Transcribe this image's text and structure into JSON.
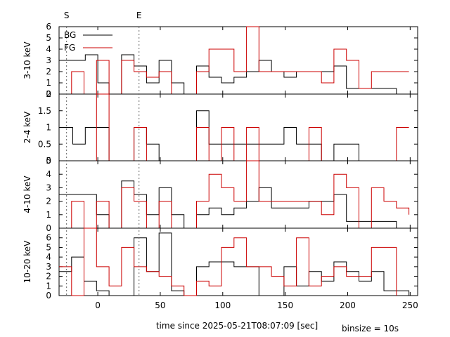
{
  "chart_data": {
    "type": "line",
    "xlabel": "time since 2025-05-21T08:07:09 [sec]",
    "binsize_label": "binsize = 10s",
    "xlim": [
      -31,
      256
    ],
    "xticks": [
      "0",
      "50",
      "100",
      "150",
      "200",
      "250"
    ],
    "markers": [
      {
        "label": "S",
        "x": -25
      },
      {
        "label": "E",
        "x": 33
      }
    ],
    "colors": {
      "BG": "#000000",
      "FG": "#cc0000"
    },
    "legend": {
      "placement": "top-left",
      "entries": [
        "BG",
        "FG"
      ]
    },
    "panels": [
      {
        "ylabel": "3-10 keV",
        "ylim": [
          0,
          6
        ],
        "yticks": [
          "0",
          "1",
          "2",
          "3",
          "4",
          "5",
          "6"
        ],
        "series": [
          {
            "name": "BG",
            "steps": [
              [
                -31,
                3
              ],
              [
                -10,
                3.5
              ],
              [
                0,
                1
              ],
              [
                9,
                0
              ],
              [
                19,
                3.5
              ],
              [
                29,
                2.5
              ],
              [
                39,
                1
              ],
              [
                49,
                3
              ],
              [
                59,
                1
              ],
              [
                69,
                0
              ],
              [
                79,
                2.5
              ],
              [
                89,
                1.5
              ],
              [
                99,
                1
              ],
              [
                109,
                1.5
              ],
              [
                119,
                2
              ],
              [
                129,
                3
              ],
              [
                139,
                2
              ],
              [
                149,
                1.5
              ],
              [
                159,
                2
              ],
              [
                179,
                2
              ],
              [
                189,
                2.5
              ],
              [
                199,
                0.5
              ],
              [
                239,
                0
              ]
            ]
          },
          {
            "name": "FG",
            "steps": [
              [
                -31,
                0
              ],
              [
                -21,
                2
              ],
              [
                -11,
                0
              ],
              [
                -1,
                3
              ],
              [
                9,
                0
              ],
              [
                19,
                3
              ],
              [
                29,
                2
              ],
              [
                39,
                1.5
              ],
              [
                49,
                2
              ],
              [
                59,
                0
              ],
              [
                79,
                2
              ],
              [
                89,
                4
              ],
              [
                109,
                2
              ],
              [
                119,
                6
              ],
              [
                129,
                2
              ],
              [
                179,
                1
              ],
              [
                189,
                4
              ],
              [
                199,
                3
              ],
              [
                209,
                0.5
              ],
              [
                219,
                2
              ],
              [
                249,
                2
              ]
            ]
          }
        ]
      },
      {
        "ylabel": "2-4 keV",
        "ylim": [
          0,
          2
        ],
        "yticks": [
          "0",
          "0.5",
          "1",
          "1.5",
          "2"
        ],
        "series": [
          {
            "name": "BG",
            "steps": [
              [
                -31,
                1
              ],
              [
                -20,
                0.5
              ],
              [
                -10,
                1
              ],
              [
                9,
                0
              ],
              [
                29,
                1
              ],
              [
                39,
                0.5
              ],
              [
                49,
                0
              ],
              [
                79,
                1.5
              ],
              [
                89,
                0.5
              ],
              [
                149,
                1
              ],
              [
                159,
                0.5
              ],
              [
                179,
                0
              ],
              [
                189,
                0.5
              ],
              [
                209,
                0
              ]
            ]
          },
          {
            "name": "FG",
            "steps": [
              [
                -31,
                0
              ],
              [
                -1,
                2
              ],
              [
                9,
                0
              ],
              [
                29,
                1
              ],
              [
                39,
                0
              ],
              [
                79,
                1
              ],
              [
                89,
                0
              ],
              [
                99,
                1
              ],
              [
                109,
                0
              ],
              [
                119,
                1
              ],
              [
                129,
                0
              ],
              [
                169,
                1
              ],
              [
                179,
                0
              ],
              [
                239,
                1
              ],
              [
                249,
                1
              ]
            ]
          }
        ]
      },
      {
        "ylabel": "4-10 keV",
        "ylim": [
          0,
          5
        ],
        "yticks": [
          "0",
          "1",
          "2",
          "3",
          "4",
          "5"
        ],
        "series": [
          {
            "name": "BG",
            "steps": [
              [
                -31,
                2.5
              ],
              [
                -1,
                1
              ],
              [
                9,
                0
              ],
              [
                19,
                3.5
              ],
              [
                29,
                2.5
              ],
              [
                39,
                1
              ],
              [
                49,
                3
              ],
              [
                59,
                1
              ],
              [
                69,
                0
              ],
              [
                79,
                1
              ],
              [
                89,
                1.5
              ],
              [
                99,
                1
              ],
              [
                109,
                1.5
              ],
              [
                119,
                2
              ],
              [
                129,
                3
              ],
              [
                139,
                1.5
              ],
              [
                169,
                2
              ],
              [
                189,
                2.5
              ],
              [
                199,
                0.5
              ],
              [
                229,
                0.5
              ],
              [
                239,
                0
              ]
            ]
          },
          {
            "name": "FG",
            "steps": [
              [
                -31,
                0
              ],
              [
                -21,
                2
              ],
              [
                -11,
                0
              ],
              [
                -1,
                2
              ],
              [
                9,
                0
              ],
              [
                19,
                3
              ],
              [
                29,
                2
              ],
              [
                39,
                0
              ],
              [
                49,
                2
              ],
              [
                59,
                0
              ],
              [
                79,
                2
              ],
              [
                89,
                4
              ],
              [
                99,
                3
              ],
              [
                109,
                2
              ],
              [
                119,
                5
              ],
              [
                129,
                2
              ],
              [
                179,
                1
              ],
              [
                189,
                4
              ],
              [
                199,
                3
              ],
              [
                209,
                0
              ],
              [
                219,
                3
              ],
              [
                229,
                2
              ],
              [
                239,
                1.5
              ],
              [
                249,
                1
              ]
            ]
          }
        ]
      },
      {
        "ylabel": "10-20 keV",
        "ylim": [
          0,
          7
        ],
        "yticks": [
          "0",
          "1",
          "2",
          "3",
          "4",
          "5",
          "6"
        ],
        "series": [
          {
            "name": "BG",
            "steps": [
              [
                -31,
                2.5
              ],
              [
                -21,
                4
              ],
              [
                -11,
                1.5
              ],
              [
                -1,
                0.5
              ],
              [
                9,
                0
              ],
              [
                29,
                6
              ],
              [
                39,
                2.5
              ],
              [
                49,
                6.5
              ],
              [
                59,
                0.5
              ],
              [
                69,
                0
              ],
              [
                79,
                3
              ],
              [
                89,
                3.5
              ],
              [
                109,
                3
              ],
              [
                129,
                0
              ],
              [
                149,
                3
              ],
              [
                159,
                1
              ],
              [
                169,
                2.5
              ],
              [
                179,
                1.5
              ],
              [
                189,
                3.5
              ],
              [
                199,
                2.5
              ],
              [
                209,
                1.5
              ],
              [
                219,
                2.5
              ],
              [
                229,
                0.5
              ],
              [
                249,
                0
              ]
            ]
          },
          {
            "name": "FG",
            "steps": [
              [
                -31,
                3
              ],
              [
                -21,
                0
              ],
              [
                -11,
                7
              ],
              [
                -1,
                3
              ],
              [
                9,
                1
              ],
              [
                19,
                5
              ],
              [
                29,
                3
              ],
              [
                39,
                2.5
              ],
              [
                49,
                2
              ],
              [
                59,
                1
              ],
              [
                69,
                0
              ],
              [
                79,
                1.5
              ],
              [
                89,
                1
              ],
              [
                99,
                5
              ],
              [
                109,
                6
              ],
              [
                119,
                3
              ],
              [
                139,
                2
              ],
              [
                149,
                1
              ],
              [
                159,
                6
              ],
              [
                169,
                1
              ],
              [
                179,
                2
              ],
              [
                189,
                3
              ],
              [
                199,
                2
              ],
              [
                209,
                2
              ],
              [
                219,
                5
              ],
              [
                239,
                0
              ]
            ]
          }
        ]
      }
    ]
  }
}
